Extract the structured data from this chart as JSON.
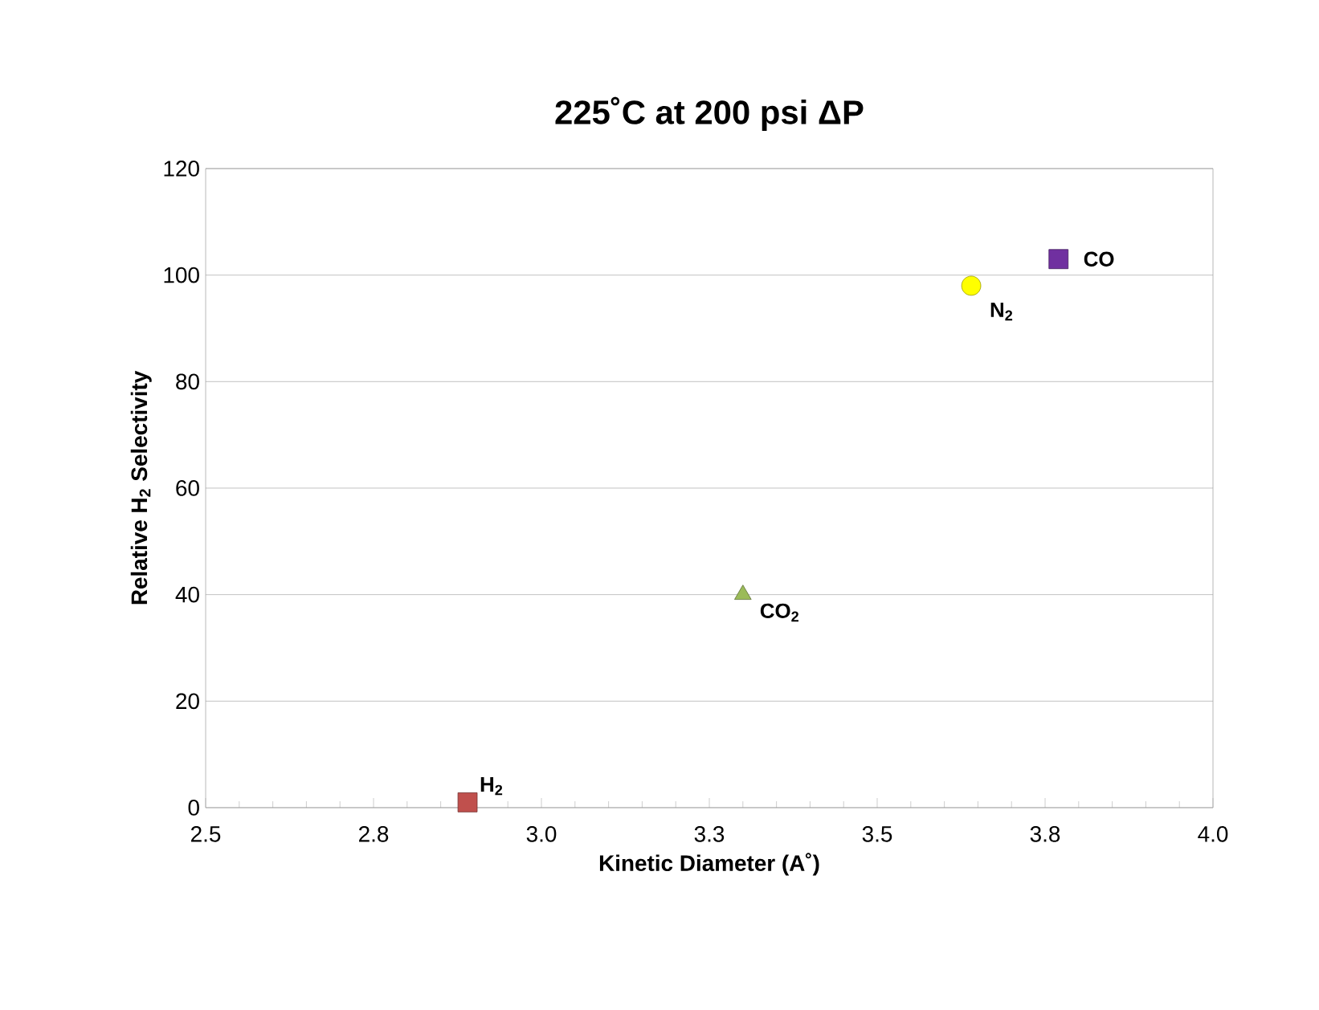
{
  "chart_data": {
    "type": "scatter",
    "title": "225˚C at 200 psi ΔP",
    "xlabel": "Kinetic Diameter (A˚)",
    "ylabel": "Relative H$_{2}$ Selectivity",
    "series": [
      {
        "name": "H$_{2}$",
        "color": "#c0504d",
        "marker": "square",
        "x": [
          2.89
        ],
        "values": [
          1
        ]
      },
      {
        "name": "CO$_{2}$",
        "color": "#9bbb59",
        "marker": "triangle",
        "x": [
          3.3
        ],
        "values": [
          40
        ]
      },
      {
        "name": "N$_{2}$",
        "color": "#ffff00",
        "marker": "circle",
        "x": [
          3.64
        ],
        "values": [
          98
        ]
      },
      {
        "name": "CO",
        "color": "#7030a0",
        "marker": "square",
        "x": [
          3.77
        ],
        "values": [
          103
        ]
      }
    ],
    "xlim": [
      2.5,
      4.0
    ],
    "ylim": [
      0,
      120
    ],
    "xticks": [
      2.5,
      {
        "value": 2.75,
        "label": "2.8"
      },
      {
        "value": 3,
        "label": "3.0"
      },
      {
        "value": 3.25,
        "label": "3.3"
      },
      3.5,
      {
        "value": 3.75,
        "label": "3.8"
      },
      {
        "value": 4,
        "label": "4.0"
      }
    ],
    "yticks": [
      0,
      20,
      40,
      60,
      80,
      100,
      120
    ],
    "grid": "y"
  }
}
